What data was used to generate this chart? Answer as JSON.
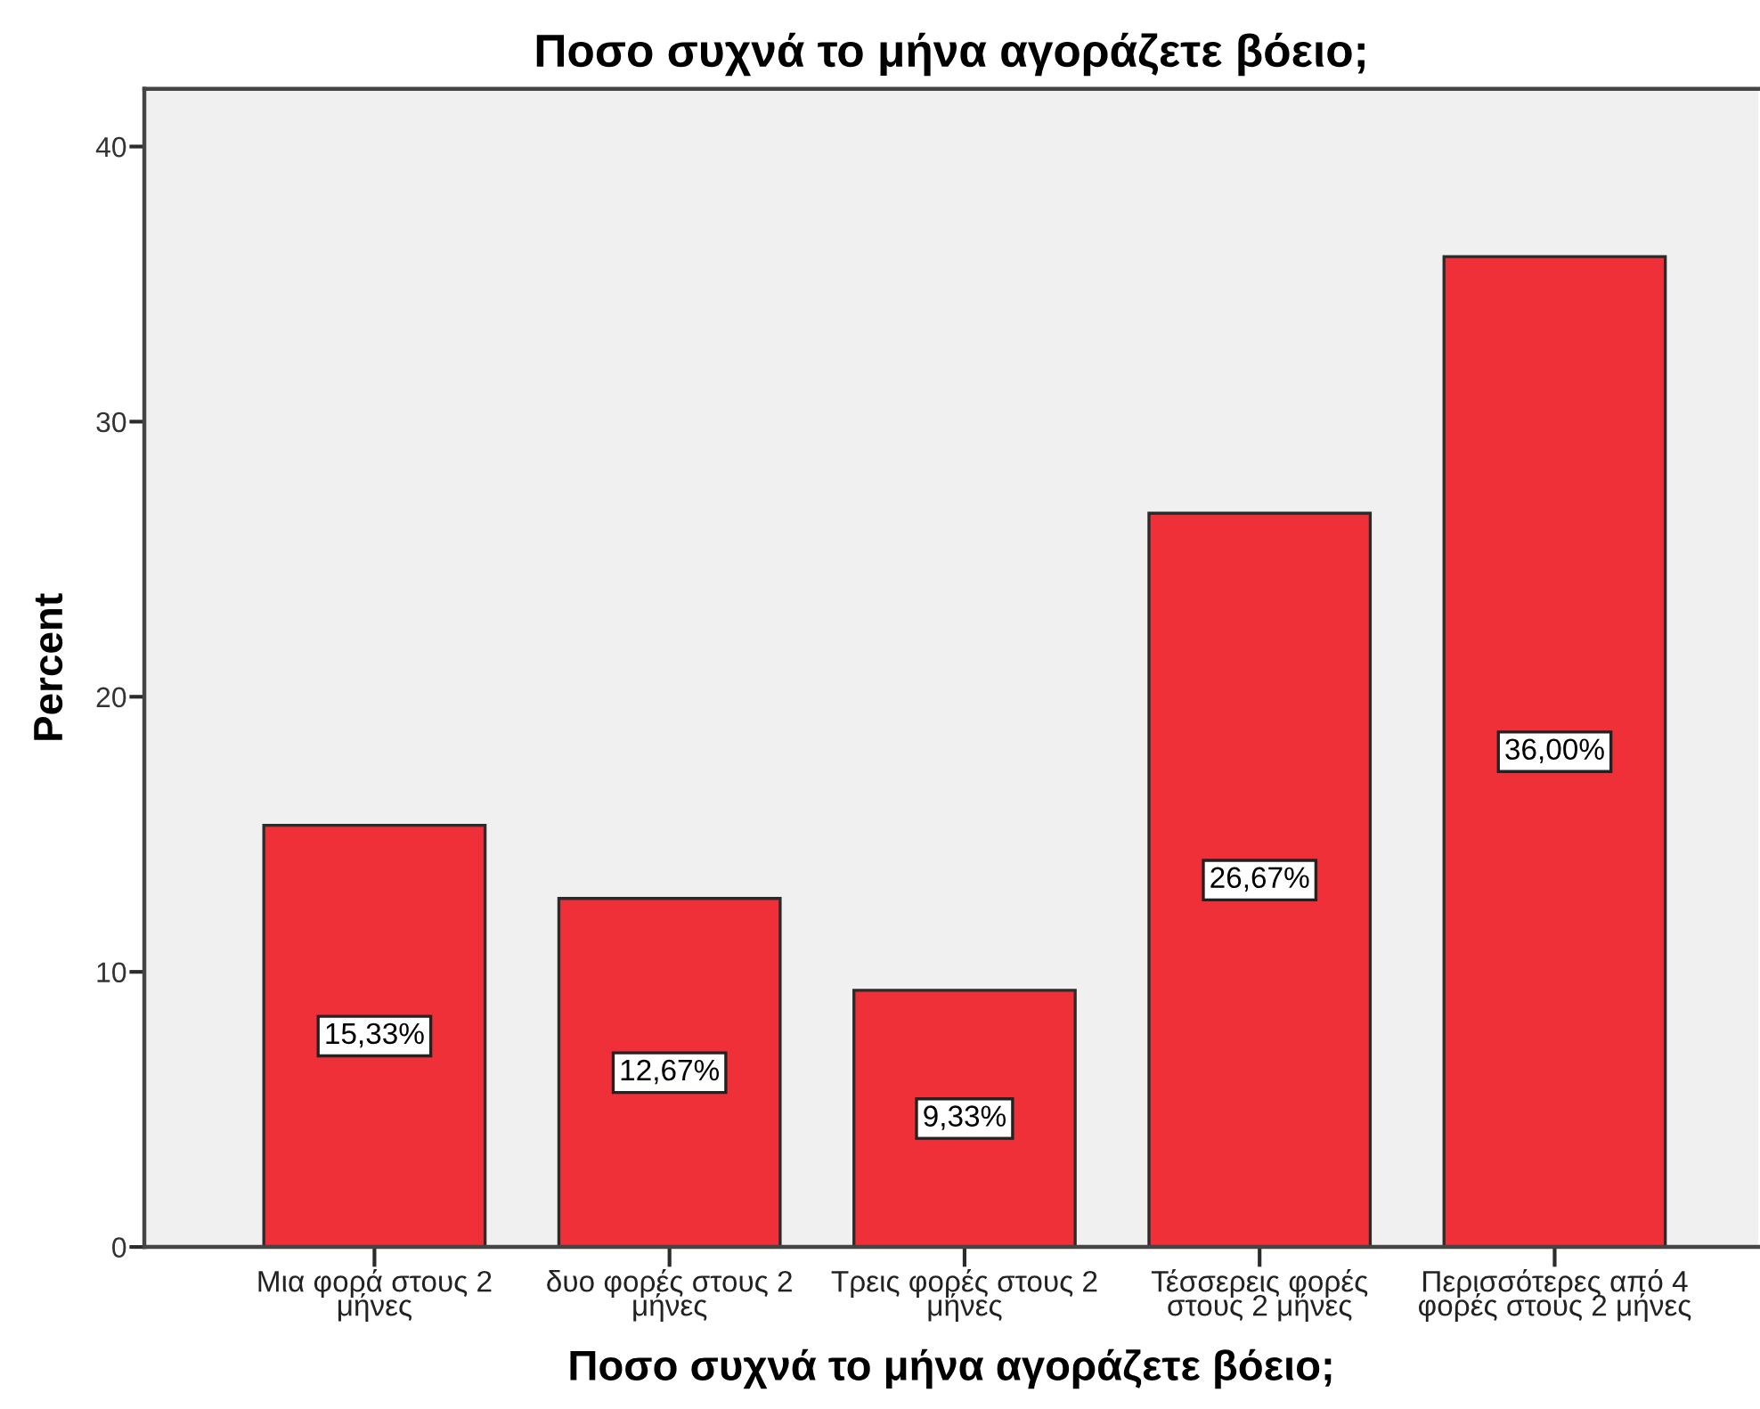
{
  "chart_data": {
    "type": "bar",
    "title": "Ποσο συχνά το μήνα αγοράζετε βόειο;",
    "xlabel": "Ποσο συχνά το μήνα αγοράζετε βόειο;",
    "ylabel": "Percent",
    "categories": [
      "Μια φορά στους 2\nμήνες",
      "δυο φορές στους 2\nμήνες",
      "Τρεις φορές στους 2\nμήνες",
      "Τέσσερεις φορές\nστους 2 μήνες",
      "Περισσότερες από 4\nφορές στους 2 μήνες"
    ],
    "values": [
      15.33,
      12.67,
      9.33,
      26.67,
      36.0
    ],
    "color": "#ef3038",
    "value_labels": [
      "15,33%",
      "12,67%",
      "9,33%",
      "26,67%",
      "36,00%"
    ],
    "ylim": [
      0,
      42.1
    ],
    "yticks": [
      0,
      10,
      20,
      30,
      40
    ]
  }
}
